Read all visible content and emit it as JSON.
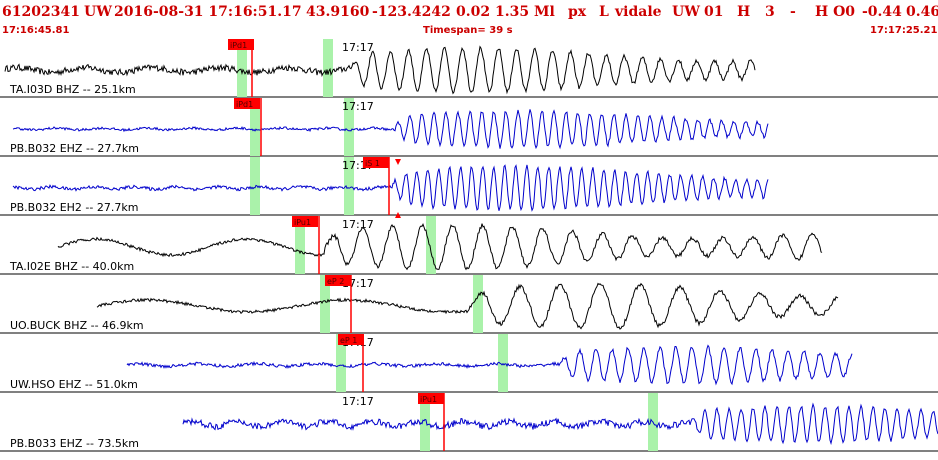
{
  "header": {
    "event_id": "61202341",
    "network": "UW",
    "origin_time": "2016-08-31 17:16:51.17",
    "latitude": "43.9160",
    "longitude": "-123.4242",
    "depth": "0.02",
    "magnitude": "1.35 Ml",
    "mag_type": "px",
    "location_type": "L",
    "analyst": "vidale",
    "source": "UW",
    "version": "01",
    "quality": "H",
    "num": "3",
    "dash": "-",
    "flag": "H O0",
    "val1": "-0.44",
    "val2": "0.46",
    "start_time": "17:16:45.81",
    "timespan": "Timespan=  39 s",
    "end_time": "17:17:25.21"
  },
  "minute_label": "17:17",
  "colors": {
    "header_text": "#cc0000",
    "pick": "#ff0000",
    "window": "#aaf2aa",
    "trace_black": "#000000",
    "trace_blue": "#0000cc"
  },
  "traces": [
    {
      "label": "TA.I03D BHZ -- 25.1km",
      "color": "#000000",
      "pick": "iPd1",
      "shown": "pick-label, minute-label"
    },
    {
      "label": "PB.B032 EHZ -- 27.7km",
      "color": "#0000cc",
      "pick": "iPd1"
    },
    {
      "label": "PB.B032 EH2 -- 27.7km",
      "color": "#0000cc",
      "pick": "iS 1"
    },
    {
      "label": "TA.I02E BHZ -- 40.0km",
      "color": "#000000",
      "pick": "iPu1"
    },
    {
      "label": "UO.BUCK BHZ -- 46.9km",
      "color": "#000000",
      "pick": "eP 2"
    },
    {
      "label": "UW.HSO EHZ -- 51.0km",
      "color": "#0000cc",
      "pick": "eP 1"
    },
    {
      "label": "PB.B033 EHZ -- 73.5km",
      "color": "#0000cc",
      "pick": "iPu1"
    }
  ]
}
